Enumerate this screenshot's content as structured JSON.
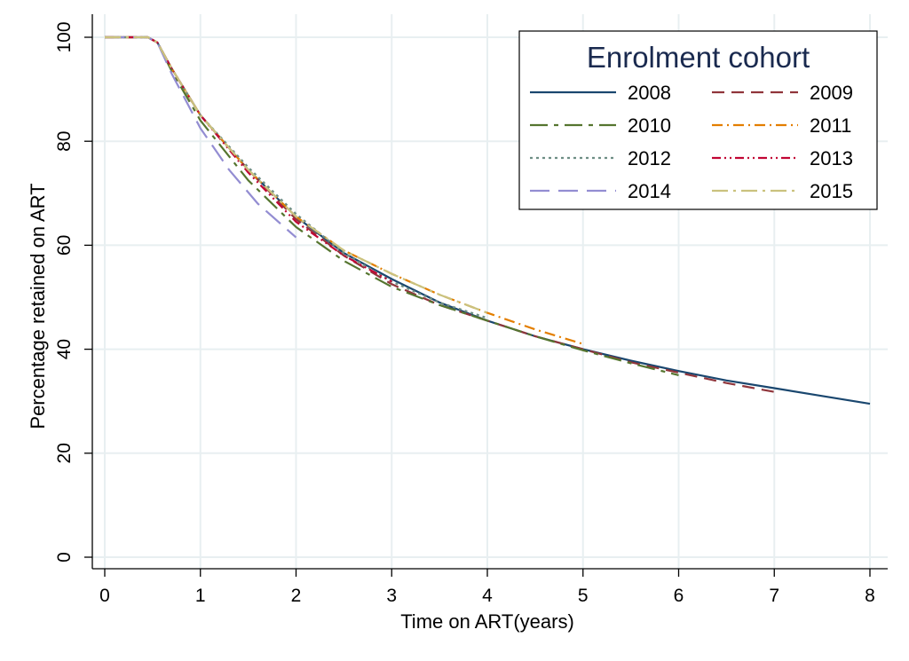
{
  "chart_data": {
    "type": "line",
    "xlabel": "Time on ART(years)",
    "ylabel": "Percentage retained on ART",
    "xlim": [
      0,
      8
    ],
    "ylim": [
      0,
      100
    ],
    "xticks": [
      "0",
      "1",
      "2",
      "3",
      "4",
      "5",
      "6",
      "7",
      "8"
    ],
    "yticks": [
      "0",
      "20",
      "40",
      "60",
      "80",
      "100"
    ],
    "grid": true,
    "legend": {
      "title": "Enrolment cohort",
      "position": "top-right",
      "columns": 2
    },
    "series": [
      {
        "name": "2008",
        "color": "#1a476f",
        "dash": "solid",
        "x": [
          0,
          0.45,
          0.55,
          0.7,
          1.0,
          1.5,
          2.0,
          2.5,
          3.0,
          3.5,
          4.0,
          4.5,
          5.0,
          5.5,
          6.0,
          6.5,
          7.0,
          7.5,
          8.0
        ],
        "y": [
          100,
          100,
          99,
          94,
          85,
          74.5,
          65.5,
          58.5,
          53.5,
          49,
          45.5,
          42.5,
          40,
          37.8,
          35.8,
          34,
          32.5,
          31,
          29.5
        ]
      },
      {
        "name": "2009",
        "color": "#90353b",
        "dash": "long",
        "x": [
          0,
          0.45,
          0.55,
          0.7,
          1.0,
          1.5,
          2.0,
          2.5,
          3.0,
          3.5,
          4.0,
          4.5,
          5.0,
          5.5,
          6.0,
          6.5,
          7.0
        ],
        "y": [
          100,
          100,
          99,
          94,
          85,
          74.5,
          65,
          58,
          52.5,
          48.5,
          45.5,
          42.5,
          40,
          37.5,
          35.5,
          33.5,
          31.8
        ]
      },
      {
        "name": "2010",
        "color": "#55752f",
        "dash": "longdash",
        "x": [
          0,
          0.45,
          0.55,
          0.7,
          1.0,
          1.5,
          2.0,
          2.5,
          3.0,
          3.5,
          4.0,
          4.5,
          5.0,
          5.5,
          6.0
        ],
        "y": [
          100,
          100,
          99,
          93.5,
          84,
          72.5,
          63.5,
          57,
          52,
          48.5,
          45.5,
          42.5,
          39.8,
          37.3,
          35
        ]
      },
      {
        "name": "2011",
        "color": "#e37e00",
        "dash": "dashdot",
        "x": [
          0,
          0.45,
          0.55,
          0.7,
          1.0,
          1.5,
          2.0,
          2.5,
          3.0,
          3.5,
          4.0,
          4.5,
          5.0
        ],
        "y": [
          100,
          100,
          99,
          94,
          85,
          74.5,
          65.5,
          59,
          54.5,
          50.5,
          47,
          43.8,
          41
        ]
      },
      {
        "name": "2012",
        "color": "#6e8e84",
        "dash": "dot",
        "x": [
          0,
          0.45,
          0.55,
          0.7,
          1.0,
          1.5,
          2.0,
          2.5,
          3.0,
          3.5,
          4.0
        ],
        "y": [
          100,
          100,
          99,
          94,
          85,
          75,
          66,
          58.5,
          53,
          49,
          46
        ]
      },
      {
        "name": "2013",
        "color": "#c10534",
        "dash": "dashdotdot",
        "x": [
          0,
          0.45,
          0.55,
          0.7,
          1.0,
          1.5,
          2.0,
          2.5,
          3.0
        ],
        "y": [
          100,
          100,
          99,
          94,
          85,
          74,
          64.5,
          58,
          53
        ]
      },
      {
        "name": "2014",
        "color": "#938dd2",
        "dash": "longgap",
        "x": [
          0,
          0.45,
          0.55,
          0.7,
          1.0,
          1.3,
          1.6,
          2.0
        ],
        "y": [
          100,
          100,
          99,
          93,
          82.5,
          74.5,
          68,
          61.5
        ]
      },
      {
        "name": "2015",
        "color": "#cac27e",
        "dash": "longdashdot",
        "x": [
          0,
          0.45,
          0.55,
          0.7,
          1.0,
          1.5,
          2.0,
          2.5,
          3.0,
          3.5,
          4.0
        ],
        "y": [
          100,
          100,
          99,
          94,
          85,
          74.5,
          65.5,
          59,
          54.5,
          50.5,
          47
        ]
      }
    ]
  }
}
